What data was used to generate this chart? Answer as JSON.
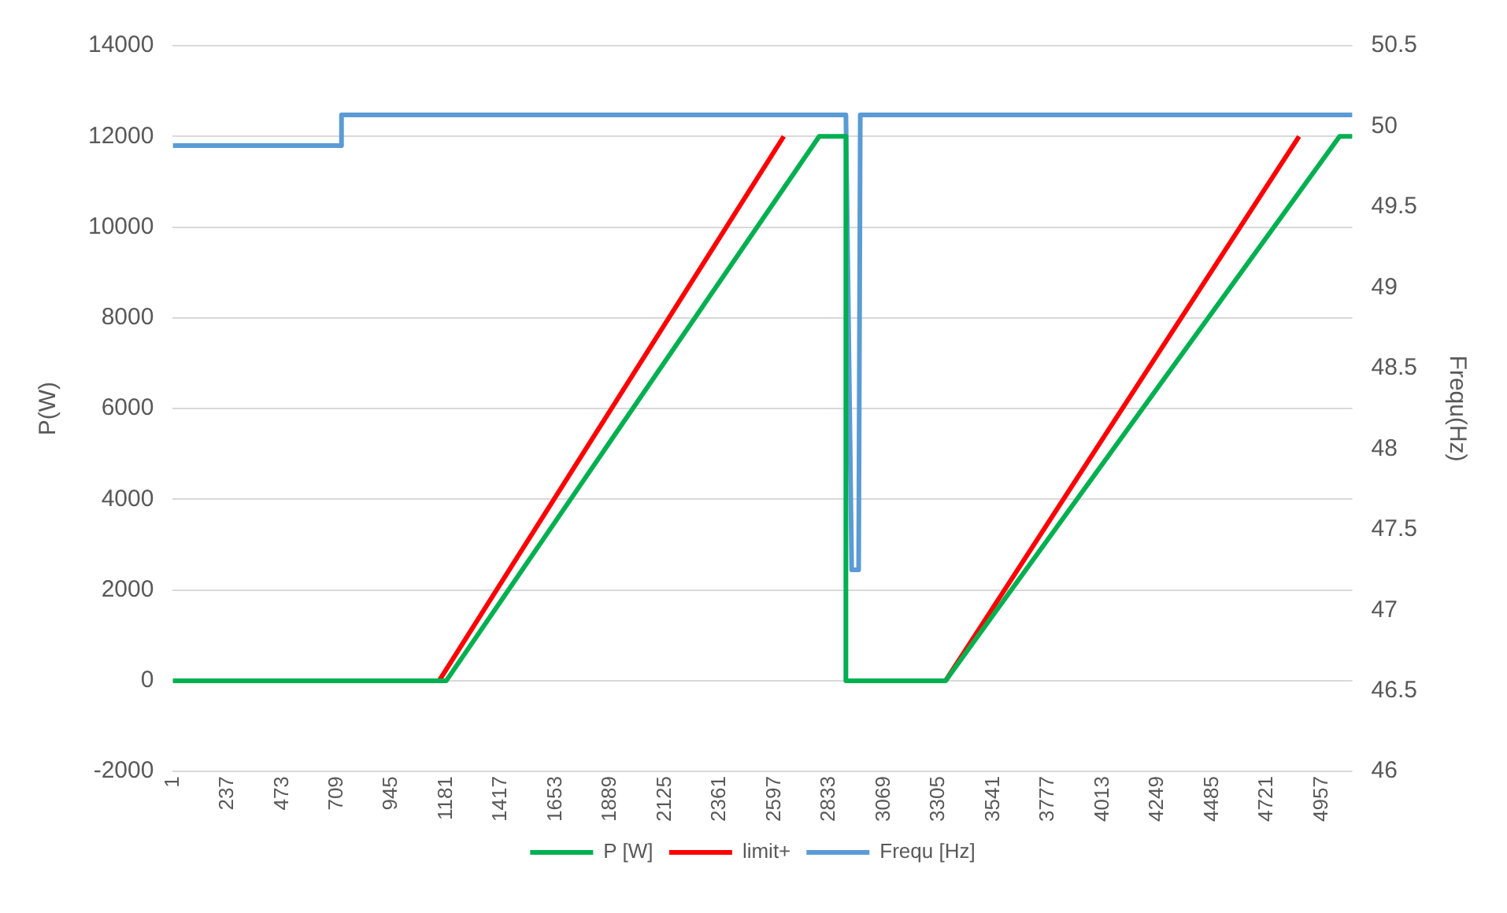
{
  "chart_data": {
    "type": "line",
    "ylabel": "P(W)",
    "y2label": "Frequ(Hz)",
    "xlim": [
      1,
      5090
    ],
    "xticks": [
      1,
      237,
      473,
      709,
      945,
      1181,
      1417,
      1653,
      1889,
      2125,
      2361,
      2597,
      2833,
      3069,
      3305,
      3541,
      3777,
      4013,
      4249,
      4485,
      4721,
      4957
    ],
    "ylim": [
      -2000,
      14000
    ],
    "yticks": [
      -2000,
      0,
      2000,
      4000,
      6000,
      8000,
      10000,
      12000,
      14000
    ],
    "y2lim": [
      46,
      50.5
    ],
    "y2ticks": [
      46,
      46.5,
      47,
      47.5,
      48,
      48.5,
      49,
      49.5,
      50,
      50.5
    ],
    "grid": "y",
    "legend": "bottom",
    "marker": "none",
    "line_style": "solid",
    "series": [
      {
        "name": "P [W]",
        "color": "#00b050",
        "x": [
          1,
          1181,
          2790,
          2905,
          2905,
          3335,
          5035,
          5090
        ],
        "values": [
          0,
          0,
          12000,
          12000,
          0,
          0,
          12000,
          12000
        ]
      },
      {
        "name": "limit+",
        "color": "#ff0000",
        "x": [
          1150,
          2637,
          null,
          3335,
          4860
        ],
        "values": [
          0,
          12000,
          null,
          0,
          12000
        ]
      },
      {
        "name": "Frequ [Hz]",
        "color": "#5b9bd5",
        "axis": "y2",
        "x": [
          1,
          729,
          729,
          2905,
          2930,
          2960,
          2967,
          5090
        ],
        "values": [
          49.88,
          49.88,
          50.07,
          50.07,
          47.25,
          47.25,
          50.07,
          50.07
        ]
      }
    ]
  }
}
